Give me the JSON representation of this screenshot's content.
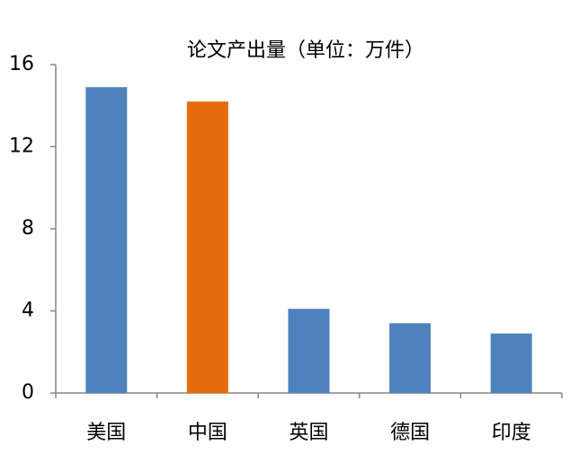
{
  "chart_data": {
    "type": "bar",
    "title": "论文产出量（单位：万件）",
    "categories": [
      "美国",
      "中国",
      "英国",
      "德国",
      "印度"
    ],
    "values": [
      14.9,
      14.2,
      4.1,
      3.4,
      2.9
    ],
    "colors": [
      "#4f81bd",
      "#e46c0a",
      "#4f81bd",
      "#4f81bd",
      "#4f81bd"
    ],
    "ylim": [
      0,
      16
    ],
    "yticks": [
      0,
      4,
      8,
      12,
      16
    ],
    "grid": false
  }
}
